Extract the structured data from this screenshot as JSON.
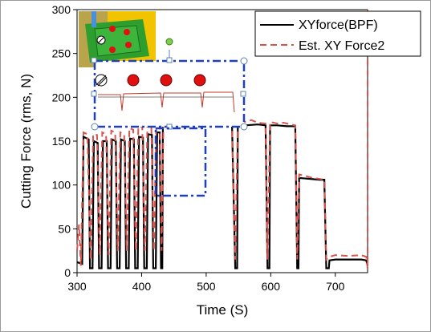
{
  "chart_data": {
    "type": "line",
    "xlabel": "Time (S)",
    "ylabel": "Cutting Force (rms, N)",
    "xlim": [
      300,
      750
    ],
    "ylim": [
      0,
      300
    ],
    "xticks": [
      "300",
      "400",
      "500",
      "600",
      "700"
    ],
    "yticks": [
      "0",
      "50",
      "100",
      "150",
      "200",
      "250",
      "300"
    ],
    "legend_position": "top-right",
    "series": [
      {
        "name": "XYforce(BPF)",
        "style": "solid",
        "color": "#000000",
        "points": [
          [
            300,
            12
          ],
          [
            308,
            10
          ],
          [
            310,
            155
          ],
          [
            318,
            152
          ],
          [
            320,
            5
          ],
          [
            324,
            5
          ],
          [
            326,
            150
          ],
          [
            332,
            148
          ],
          [
            334,
            5
          ],
          [
            338,
            5
          ],
          [
            340,
            150
          ],
          [
            346,
            150
          ],
          [
            348,
            5
          ],
          [
            352,
            5
          ],
          [
            354,
            152
          ],
          [
            360,
            150
          ],
          [
            362,
            5
          ],
          [
            366,
            5
          ],
          [
            368,
            152
          ],
          [
            374,
            150
          ],
          [
            376,
            5
          ],
          [
            380,
            5
          ],
          [
            382,
            153
          ],
          [
            388,
            152
          ],
          [
            390,
            5
          ],
          [
            394,
            5
          ],
          [
            396,
            155
          ],
          [
            402,
            154
          ],
          [
            404,
            5
          ],
          [
            408,
            5
          ],
          [
            410,
            158
          ],
          [
            416,
            157
          ],
          [
            418,
            5
          ],
          [
            422,
            5
          ],
          [
            424,
            160
          ],
          [
            428,
            160
          ],
          [
            430,
            5
          ],
          [
            432,
            5
          ],
          [
            433,
            172
          ],
          [
            436,
            170
          ],
          [
            444,
            170
          ],
          [
            460,
            168
          ],
          [
            480,
            170
          ],
          [
            500,
            169
          ],
          [
            520,
            168
          ],
          [
            540,
            168
          ],
          [
            545,
            5
          ],
          [
            548,
            5
          ],
          [
            549,
            170
          ],
          [
            560,
            168
          ],
          [
            580,
            169
          ],
          [
            592,
            168
          ],
          [
            595,
            5
          ],
          [
            598,
            5
          ],
          [
            599,
            168
          ],
          [
            610,
            168
          ],
          [
            625,
            167
          ],
          [
            638,
            167
          ],
          [
            641,
            5
          ],
          [
            643,
            5
          ],
          [
            644,
            108
          ],
          [
            660,
            107
          ],
          [
            675,
            106
          ],
          [
            683,
            106
          ],
          [
            686,
            5
          ],
          [
            690,
            5
          ],
          [
            691,
            14
          ],
          [
            700,
            15
          ],
          [
            720,
            15
          ],
          [
            740,
            15
          ],
          [
            748,
            14
          ],
          [
            750,
            8
          ]
        ]
      },
      {
        "name": "Est. XY Force2",
        "style": "dashed",
        "color": "#d9534f",
        "points": [
          [
            300,
            25
          ],
          [
            303,
            55
          ],
          [
            306,
            8
          ],
          [
            310,
            160
          ],
          [
            316,
            158
          ],
          [
            321,
            15
          ],
          [
            325,
            158
          ],
          [
            331,
            157
          ],
          [
            335,
            20
          ],
          [
            339,
            160
          ],
          [
            345,
            158
          ],
          [
            349,
            20
          ],
          [
            353,
            162
          ],
          [
            359,
            160
          ],
          [
            363,
            25
          ],
          [
            367,
            160
          ],
          [
            373,
            158
          ],
          [
            377,
            25
          ],
          [
            381,
            165
          ],
          [
            387,
            163
          ],
          [
            391,
            25
          ],
          [
            395,
            168
          ],
          [
            401,
            166
          ],
          [
            405,
            25
          ],
          [
            409,
            170
          ],
          [
            415,
            168
          ],
          [
            419,
            25
          ],
          [
            423,
            175
          ],
          [
            428,
            173
          ],
          [
            431,
            25
          ],
          [
            434,
            180
          ],
          [
            440,
            175
          ],
          [
            446,
            178
          ],
          [
            452,
            172
          ],
          [
            458,
            176
          ],
          [
            464,
            174
          ],
          [
            470,
            177
          ],
          [
            476,
            172
          ],
          [
            482,
            176
          ],
          [
            490,
            173
          ],
          [
            500,
            175
          ],
          [
            510,
            172
          ],
          [
            520,
            174
          ],
          [
            530,
            171
          ],
          [
            540,
            172
          ],
          [
            545,
            15
          ],
          [
            549,
            175
          ],
          [
            560,
            172
          ],
          [
            570,
            174
          ],
          [
            580,
            171
          ],
          [
            592,
            170
          ],
          [
            595,
            15
          ],
          [
            599,
            172
          ],
          [
            610,
            170
          ],
          [
            620,
            171
          ],
          [
            630,
            169
          ],
          [
            638,
            168
          ],
          [
            641,
            15
          ],
          [
            644,
            112
          ],
          [
            655,
            110
          ],
          [
            665,
            108
          ],
          [
            675,
            107
          ],
          [
            683,
            106
          ],
          [
            686,
            15
          ],
          [
            691,
            18
          ],
          [
            700,
            20
          ],
          [
            720,
            19
          ],
          [
            740,
            20
          ],
          [
            748,
            18
          ],
          [
            750,
            5
          ],
          [
            752,
            300
          ]
        ]
      }
    ]
  }
}
